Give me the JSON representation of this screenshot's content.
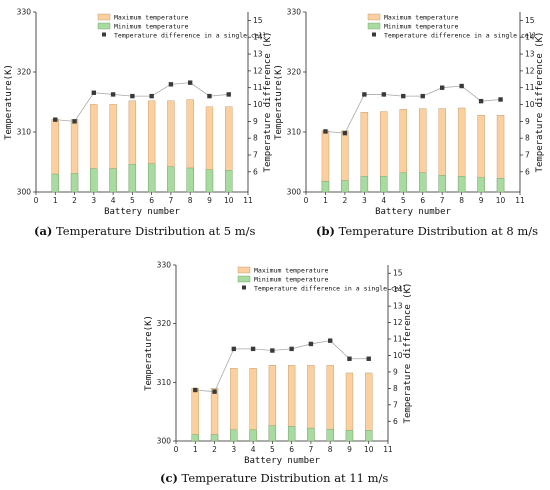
{
  "captions": [
    {
      "tag": "(a)",
      "text": "Temperature Distribution at 5 m/s"
    },
    {
      "tag": "(b)",
      "text": "Temperature Distribution at 8 m/s"
    },
    {
      "tag": "(c)",
      "text": "Temperature Distribution at 11 m/s"
    }
  ],
  "colors": {
    "max_bar": "#fbcf9e",
    "min_bar": "#a8dba0",
    "line": "#aaaaaa",
    "marker": "#3a3a3a"
  },
  "chart_data": [
    {
      "type": "bar",
      "xlabel": "Battery number",
      "ylabel": "Temperature(K)",
      "y2label": "Temperature difference (K)",
      "x_ticks": [
        0,
        1,
        2,
        3,
        4,
        5,
        6,
        7,
        8,
        9,
        10,
        11
      ],
      "xlim": [
        0,
        11
      ],
      "ylim": [
        300,
        330
      ],
      "y_ticks": [
        300,
        310,
        320,
        330
      ],
      "y2lim": [
        4.8,
        15.5
      ],
      "y2_ticks": [
        6,
        7,
        8,
        9,
        10,
        11,
        12,
        13,
        14,
        15
      ],
      "categories": [
        1,
        2,
        3,
        4,
        5,
        6,
        7,
        8,
        9,
        10
      ],
      "legend": {
        "position": "top-left"
      },
      "series": [
        {
          "name": "Maximum temperature",
          "kind": "bar",
          "axis": "left",
          "values": [
            312.1,
            312.1,
            314.6,
            314.6,
            315.2,
            315.2,
            315.2,
            315.4,
            314.2,
            314.2
          ]
        },
        {
          "name": "Minimum temperature",
          "kind": "bar",
          "axis": "left",
          "values": [
            303.0,
            303.1,
            303.9,
            303.9,
            304.6,
            304.7,
            304.2,
            304.0,
            303.7,
            303.6
          ]
        },
        {
          "name": "Temperature difference in a single cell",
          "kind": "line",
          "axis": "right",
          "values": [
            9.1,
            9.0,
            10.7,
            10.6,
            10.5,
            10.5,
            11.2,
            11.3,
            10.5,
            10.6
          ]
        }
      ]
    },
    {
      "type": "bar",
      "xlabel": "Battery number",
      "ylabel": "Temperature(K)",
      "y2label": "Temperature difference (K)",
      "x_ticks": [
        0,
        1,
        2,
        3,
        4,
        5,
        6,
        7,
        8,
        9,
        10,
        11
      ],
      "xlim": [
        0,
        11
      ],
      "ylim": [
        300,
        330
      ],
      "y_ticks": [
        300,
        310,
        320,
        330
      ],
      "y2lim": [
        4.8,
        15.5
      ],
      "y2_ticks": [
        6,
        7,
        8,
        9,
        10,
        11,
        12,
        13,
        14,
        15
      ],
      "categories": [
        1,
        2,
        3,
        4,
        5,
        6,
        7,
        8,
        9,
        10
      ],
      "legend": {
        "position": "top-left"
      },
      "series": [
        {
          "name": "Maximum temperature",
          "kind": "bar",
          "axis": "left",
          "values": [
            310.2,
            310.2,
            313.3,
            313.4,
            313.8,
            313.9,
            313.9,
            314.0,
            312.8,
            312.8
          ]
        },
        {
          "name": "Minimum temperature",
          "kind": "bar",
          "axis": "left",
          "values": [
            301.8,
            301.9,
            302.6,
            302.6,
            303.2,
            303.2,
            302.8,
            302.6,
            302.4,
            302.3
          ]
        },
        {
          "name": "Temperature difference in a single cell",
          "kind": "line",
          "axis": "right",
          "values": [
            8.4,
            8.3,
            10.6,
            10.6,
            10.5,
            10.5,
            11.0,
            11.1,
            10.2,
            10.3
          ]
        }
      ]
    },
    {
      "type": "bar",
      "xlabel": "Battery number",
      "ylabel": "Temperature(K)",
      "y2label": "Temperature difference (K)",
      "x_ticks": [
        0,
        1,
        2,
        3,
        4,
        5,
        6,
        7,
        8,
        9,
        10,
        11
      ],
      "xlim": [
        0,
        11
      ],
      "ylim": [
        300,
        330
      ],
      "y_ticks": [
        300,
        310,
        320,
        330
      ],
      "y2lim": [
        4.8,
        15.5
      ],
      "y2_ticks": [
        6,
        7,
        8,
        9,
        10,
        11,
        12,
        13,
        14,
        15
      ],
      "categories": [
        1,
        2,
        3,
        4,
        5,
        6,
        7,
        8,
        9,
        10
      ],
      "legend": {
        "position": "top-left"
      },
      "series": [
        {
          "name": "Maximum temperature",
          "kind": "bar",
          "axis": "left",
          "values": [
            309.0,
            309.0,
            312.4,
            312.4,
            312.9,
            312.9,
            312.9,
            312.9,
            311.6,
            311.6
          ]
        },
        {
          "name": "Minimum temperature",
          "kind": "bar",
          "axis": "left",
          "values": [
            301.1,
            301.1,
            301.9,
            301.9,
            302.6,
            302.5,
            302.2,
            302.0,
            301.8,
            301.8
          ]
        },
        {
          "name": "Temperature difference in a single cell",
          "kind": "line",
          "axis": "right",
          "values": [
            7.9,
            7.8,
            10.4,
            10.4,
            10.3,
            10.4,
            10.7,
            10.9,
            9.8,
            9.8
          ]
        }
      ]
    }
  ]
}
